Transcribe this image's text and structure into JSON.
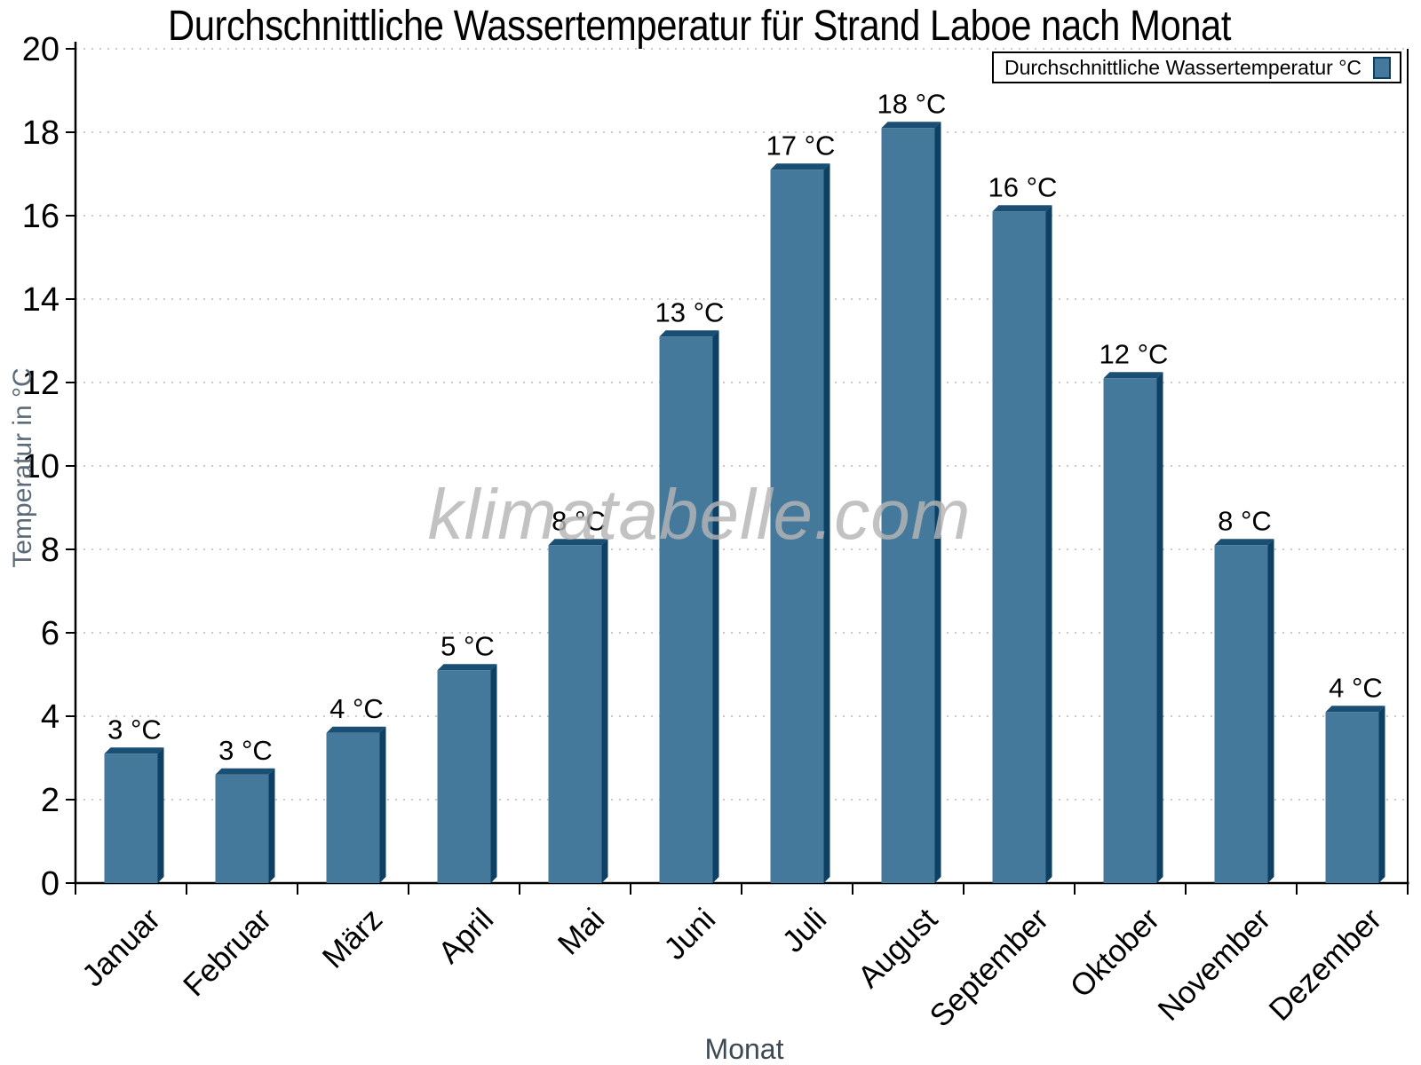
{
  "watermark": "klimatabelle.com",
  "colors": {
    "bar_face": "#44799C",
    "bar_top": "#1A4E73",
    "bar_side": "#0D4063",
    "gridline": "#C9C9C9",
    "axis": "#000000",
    "axis_title_gray": "#5C6B77",
    "x_title_gray": "#3E4A53",
    "watermark_gray": "#B5B5B5"
  },
  "chart_data": {
    "type": "bar",
    "title": "Durchschnittliche Wassertemperatur für Strand Laboe nach Monat",
    "xlabel": "Monat",
    "ylabel": "Temperatur in °C",
    "legend": "Durchschnittliche Wassertemperatur °C",
    "legend_position": "top-right",
    "grid": "horizontal-dotted",
    "ylim": [
      0,
      20
    ],
    "y_ticks": [
      0,
      2,
      4,
      6,
      8,
      10,
      12,
      14,
      16,
      18,
      20
    ],
    "categories": [
      "Januar",
      "Februar",
      "März",
      "April",
      "Mai",
      "Juni",
      "Juli",
      "August",
      "September",
      "Oktober",
      "November",
      "Dezember"
    ],
    "values": [
      3,
      3,
      4,
      5,
      8,
      13,
      17,
      18,
      16,
      12,
      8,
      4
    ],
    "value_labels": [
      "3 °C",
      "3 °C",
      "4 °C",
      "5 °C",
      "8 °C",
      "13 °C",
      "17 °C",
      "18 °C",
      "16 °C",
      "12 °C",
      "8 °C",
      "4 °C"
    ],
    "bar_heights_precise": [
      3.1,
      2.6,
      3.6,
      5.1,
      8.1,
      13.1,
      17.1,
      18.1,
      16.1,
      12.1,
      8.1,
      4.1
    ]
  }
}
